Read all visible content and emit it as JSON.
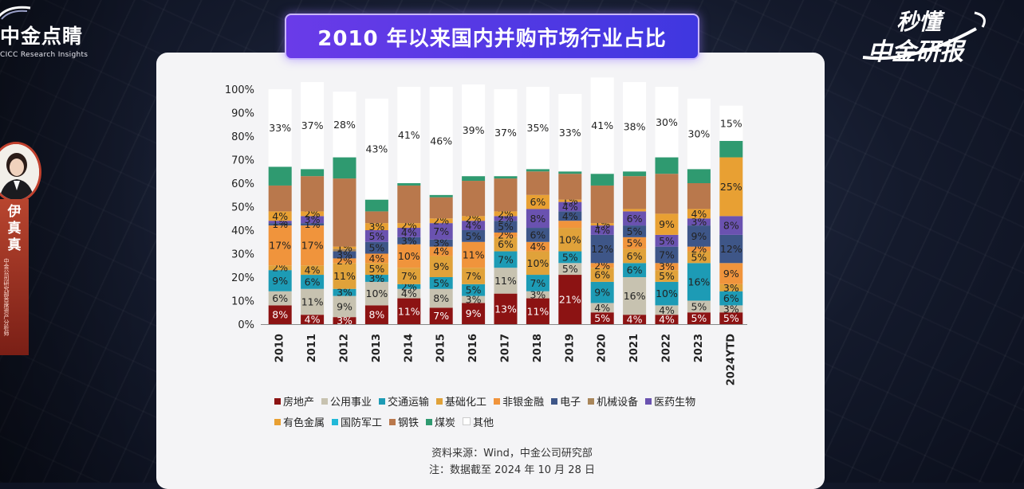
{
  "brand_left": {
    "name": "中金点睛",
    "sub": "CICC Research Insights"
  },
  "brand_right": {
    "line1": "秒懂",
    "line2": "中金研报"
  },
  "presenter": {
    "name": "伊真真",
    "title": "中金公司研究部首席资产分析师"
  },
  "title": "2010 年以来国内并购市场行业占比",
  "source": "资料来源：Wind，中金公司研究部",
  "note": "注：数据截至 2024 年 10 月 28 日",
  "chart_data": {
    "type": "bar",
    "stacked": true,
    "percent": true,
    "categories": [
      "2010",
      "2011",
      "2012",
      "2013",
      "2014",
      "2015",
      "2016",
      "2017",
      "2018",
      "2019",
      "2020",
      "2021",
      "2022",
      "2023",
      "2024YTD"
    ],
    "y_ticks": [
      "0%",
      "10%",
      "20%",
      "30%",
      "40%",
      "50%",
      "60%",
      "70%",
      "80%",
      "90%",
      "100%"
    ],
    "ylim": [
      0,
      100
    ],
    "legend_position": "bottom",
    "series": [
      {
        "name": "房地产",
        "color": "#8c1313",
        "values": [
          8,
          4,
          3,
          8,
          11,
          7,
          9,
          13,
          11,
          21,
          5,
          4,
          4,
          5,
          5
        ],
        "labels": [
          "8%",
          "4%",
          "3%",
          "8%",
          "11%",
          "7%",
          "9%",
          "13%",
          "11%",
          "21%",
          "5%",
          "4%",
          "4%",
          "5%",
          "5%"
        ]
      },
      {
        "name": "公用事业",
        "color": "#c7c2b0",
        "values": [
          6,
          11,
          9,
          10,
          4,
          8,
          3,
          11,
          3,
          5,
          4,
          16,
          4,
          5,
          3
        ],
        "labels": [
          "6%",
          "11%",
          "9%",
          "10%",
          "4%",
          "8%",
          "3%",
          "11%",
          "3%",
          "5%",
          "4%",
          "16%",
          "4%",
          "5%",
          "3%"
        ]
      },
      {
        "name": "交通运输",
        "color": "#1d9bb5",
        "values": [
          9,
          6,
          3,
          3,
          2,
          5,
          5,
          7,
          7,
          5,
          9,
          6,
          10,
          16,
          6
        ],
        "labels": [
          "9%",
          "6%",
          "3%",
          "3%",
          "2%",
          "5%",
          "5%",
          "7%",
          "7%",
          "5%",
          "9%",
          "6%",
          "10%",
          "16%",
          "6%"
        ]
      },
      {
        "name": "基础化工",
        "color": "#e0a23a",
        "values": [
          2,
          4,
          11,
          5,
          7,
          9,
          7,
          6,
          10,
          10,
          6,
          6,
          5,
          5,
          3
        ],
        "labels": [
          "2%",
          "4%",
          "11%",
          "5%",
          "7%",
          "9%",
          "7%",
          "6%",
          "10%",
          "10%",
          "6%",
          "6%",
          "5%",
          "5%",
          "3%"
        ]
      },
      {
        "name": "非银金融",
        "color": "#f0943c",
        "values": [
          17,
          17,
          2,
          4,
          10,
          4,
          11,
          2,
          4,
          3,
          2,
          5,
          3,
          2,
          9
        ],
        "labels": [
          "17%",
          "17%",
          "2%",
          "4%",
          "10%",
          "4%",
          "11%",
          "2%",
          "4%",
          "",
          "2%",
          "5%",
          "3%",
          "2%",
          "9%"
        ]
      },
      {
        "name": "电子",
        "color": "#3e5688",
        "values": [
          1,
          1,
          3,
          5,
          3,
          3,
          5,
          5,
          6,
          4,
          12,
          5,
          7,
          9,
          12
        ],
        "labels": [
          "1%",
          "1%",
          "3%",
          "5%",
          "3%",
          "3%",
          "5%",
          "5%",
          "6%",
          "4%",
          "12%",
          "5%",
          "7%",
          "9%",
          "12%"
        ]
      },
      {
        "name": "机械设备",
        "color": "#a9865a",
        "values": [
          0,
          0,
          1,
          0,
          0,
          0,
          0,
          0,
          0,
          0,
          0,
          0,
          0,
          0,
          0
        ],
        "labels": [
          "",
          "",
          "",
          "",
          "",
          "",
          "",
          "",
          "",
          "",
          "",
          "",
          "",
          "",
          ""
        ]
      },
      {
        "name": "医药生物",
        "color": "#6a52b0",
        "values": [
          1,
          3,
          0,
          5,
          4,
          7,
          4,
          2,
          8,
          4,
          4,
          6,
          5,
          3,
          8
        ],
        "labels": [
          "1%",
          "3%",
          "",
          "5%",
          "4%",
          "7%",
          "4%",
          "2%",
          "8%",
          "4%",
          "4%",
          "6%",
          "5%",
          "3%",
          "8%"
        ]
      },
      {
        "name": "有色金属",
        "color": "#e8a033",
        "values": [
          4,
          2,
          1,
          3,
          2,
          2,
          2,
          2,
          6,
          1,
          1,
          1,
          9,
          4,
          25
        ],
        "labels": [
          "4%",
          "2%",
          "1%",
          "3%",
          "2%",
          "2%",
          "2%",
          "2%",
          "6%",
          "1%",
          "1%",
          "",
          "9%",
          "4%",
          "25%"
        ]
      },
      {
        "name": "国防军工",
        "color": "#22b8d8",
        "values": [
          0,
          0,
          0,
          0,
          0,
          0,
          0,
          0,
          0,
          0,
          0,
          0,
          0,
          0,
          0
        ],
        "labels": [
          "",
          "",
          "",
          "",
          "",
          "",
          "",
          "",
          "",
          "",
          "",
          "",
          "",
          "",
          ""
        ]
      },
      {
        "name": "钢铁",
        "color": "#b9784c",
        "values": [
          11,
          15,
          29,
          5,
          16,
          9,
          15,
          14,
          10,
          11,
          16,
          14,
          17,
          11,
          0
        ],
        "labels": [
          "",
          "",
          "",
          "",
          "",
          "",
          "",
          "",
          "",
          "",
          "",
          "",
          "",
          "",
          ""
        ]
      },
      {
        "name": "煤炭",
        "color": "#2f9a70",
        "values": [
          8,
          3,
          9,
          5,
          1,
          1,
          2,
          1,
          1,
          1,
          5,
          2,
          7,
          6,
          7
        ],
        "labels": [
          "",
          "",
          "",
          "",
          "",
          "",
          "",
          "",
          "",
          "",
          "",
          "",
          "",
          "",
          ""
        ]
      },
      {
        "name": "其他",
        "color": "#ffffff",
        "values": [
          33,
          37,
          28,
          43,
          41,
          46,
          39,
          37,
          35,
          33,
          41,
          38,
          30,
          30,
          15
        ],
        "labels": [
          "33%",
          "37%",
          "28%",
          "43%",
          "41%",
          "46%",
          "39%",
          "37%",
          "35%",
          "33%",
          "41%",
          "38%",
          "30%",
          "30%",
          "15%"
        ]
      }
    ],
    "dark_series": [
      "房地产"
    ]
  }
}
